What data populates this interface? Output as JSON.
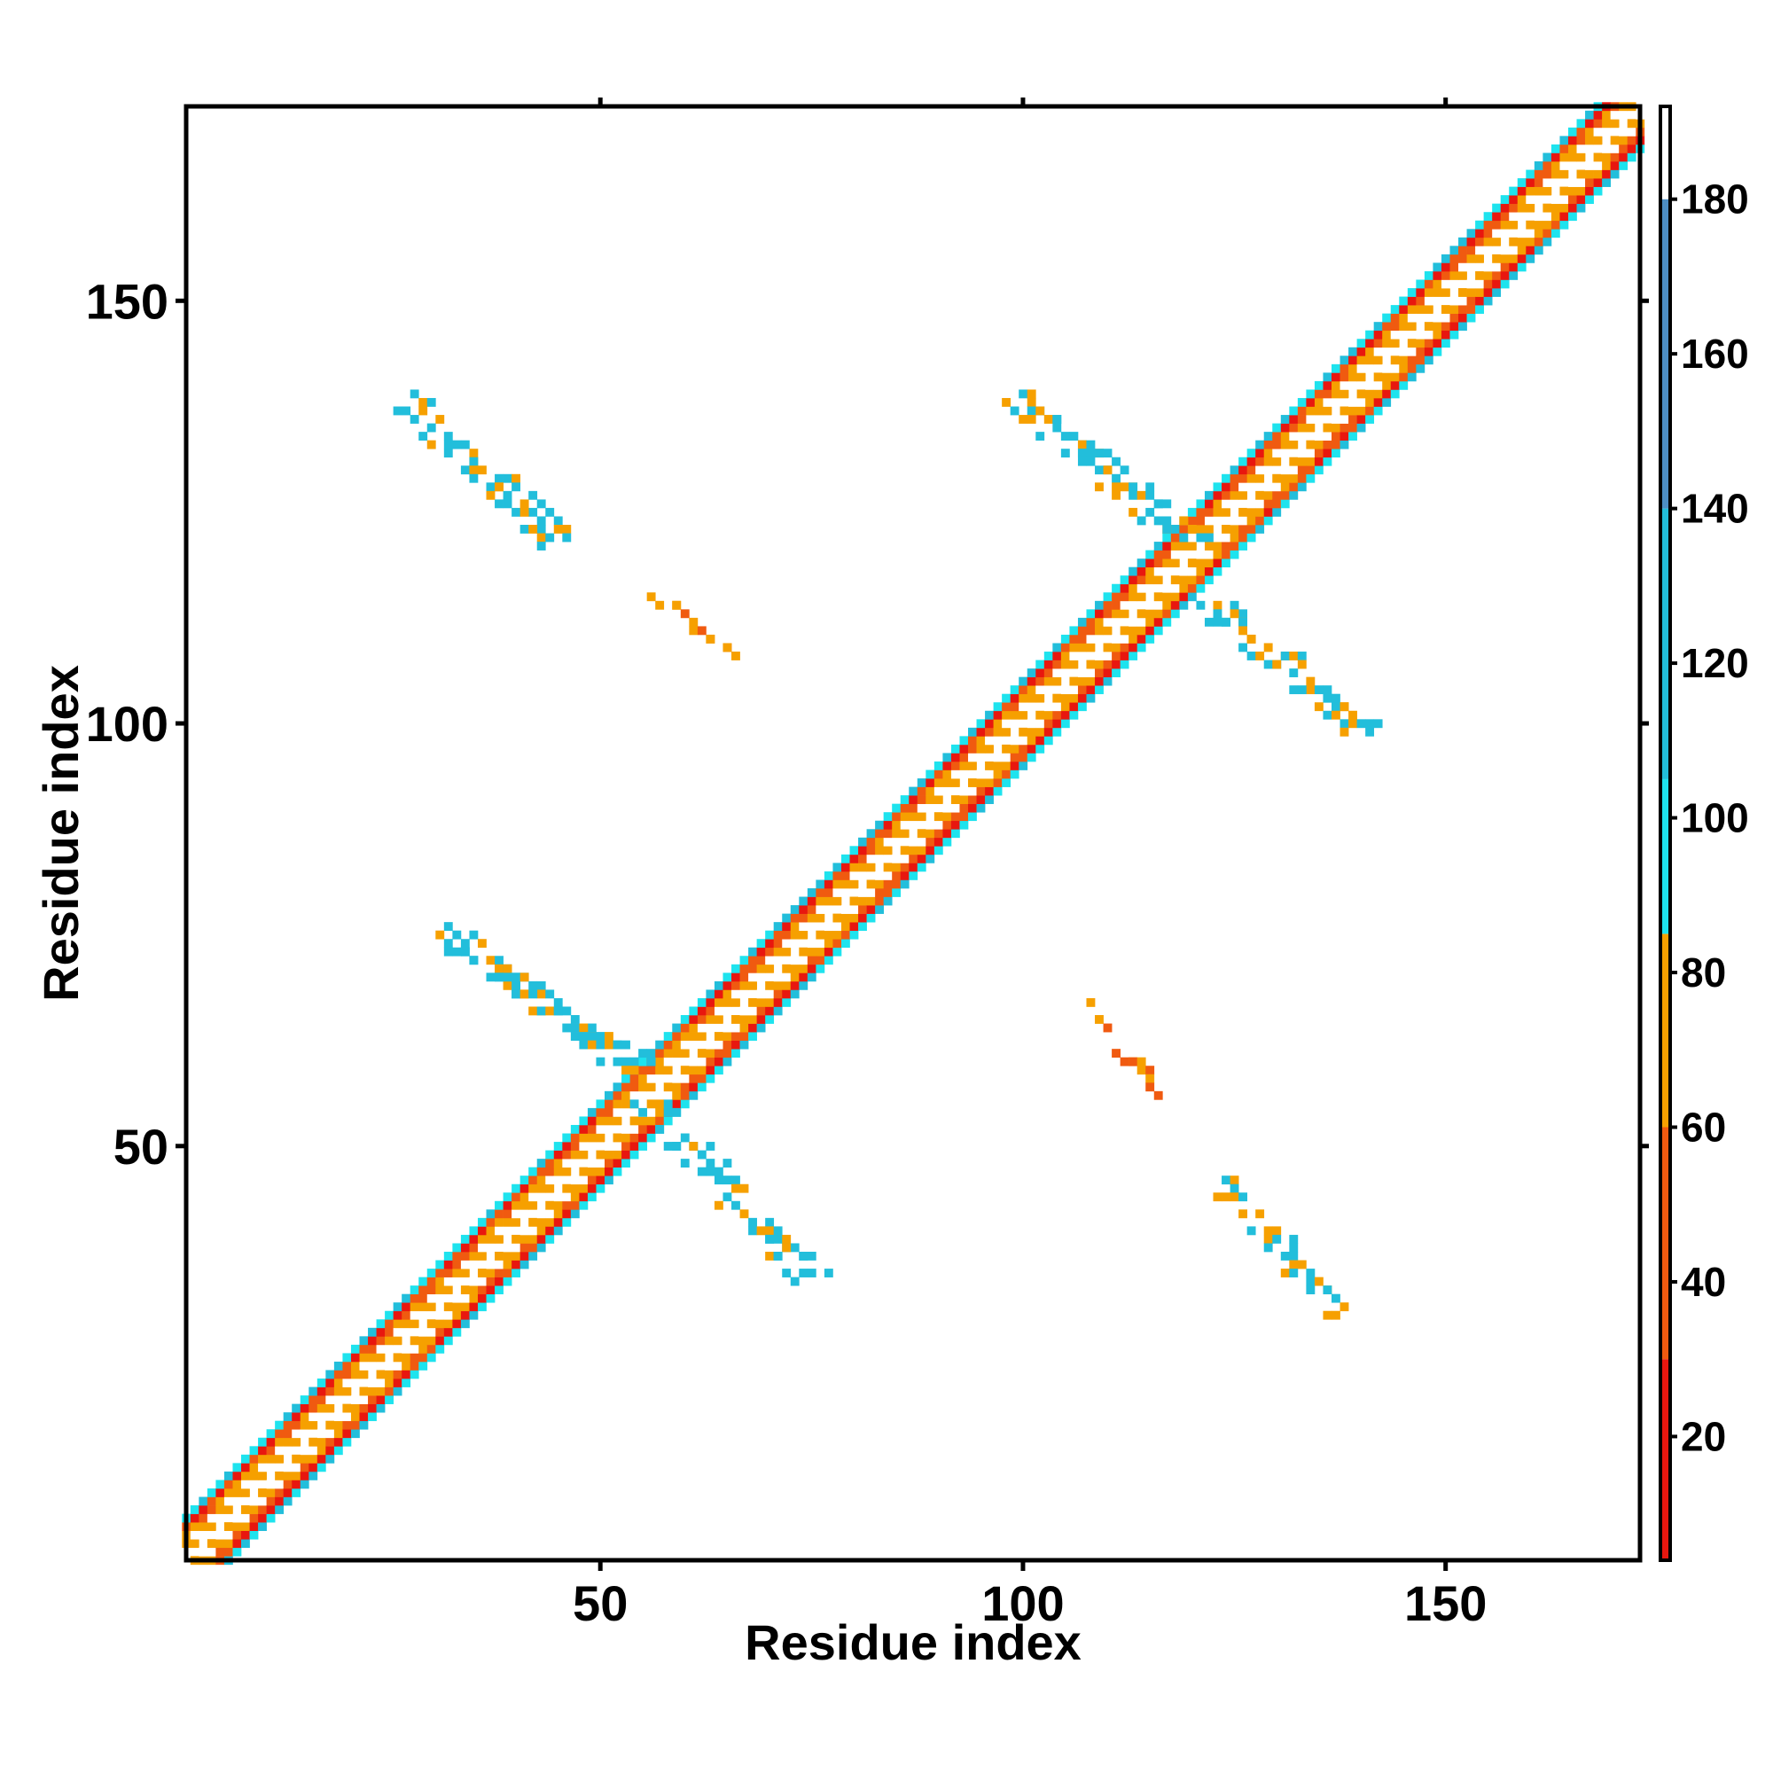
{
  "chart_data": {
    "type": "heatmap",
    "title": "",
    "xlabel": "Residue index",
    "ylabel": "Residue index",
    "xlim": [
      1,
      173
    ],
    "ylim": [
      1,
      173
    ],
    "x_ticks": [
      50,
      100,
      150
    ],
    "y_ticks": [
      50,
      100,
      150
    ],
    "grid": false,
    "colorbar": {
      "range": [
        4,
        192
      ],
      "ticks": [
        20,
        40,
        60,
        80,
        100,
        120,
        140,
        160,
        180
      ],
      "segments": [
        {
          "from": 4,
          "to": 30,
          "color": "#e8170f"
        },
        {
          "from": 30,
          "to": 60,
          "color": "#f05a10"
        },
        {
          "from": 60,
          "to": 85,
          "color": "#f6a000"
        },
        {
          "from": 85,
          "to": 105,
          "color": "#1ee3ee"
        },
        {
          "from": 105,
          "to": 140,
          "color": "#22bedb"
        },
        {
          "from": 140,
          "to": 180,
          "color": "#4d8ec4"
        },
        {
          "from": 180,
          "to": 192,
          "color": "#ffffff"
        }
      ]
    },
    "diagonal_band": {
      "from": 1,
      "to": 173,
      "half_width": 5
    },
    "off_diagonal_contacts": [
      {
        "from": [
          27,
          138
        ],
        "to": [
          45,
          121
        ],
        "strands": 5,
        "value_mix": [
          70,
          110,
          140
        ]
      },
      {
        "from": [
          31,
          75
        ],
        "to": [
          54,
          59
        ],
        "strands": 5,
        "value_mix": [
          70,
          110,
          140
        ]
      },
      {
        "from": [
          56,
          54
        ],
        "to": [
          75,
          34
        ],
        "strands": 5,
        "value_mix": [
          70,
          110,
          140
        ]
      },
      {
        "from": [
          99,
          138
        ],
        "to": [
          120,
          121
        ],
        "strands": 5,
        "value_mix": [
          70,
          110,
          140
        ]
      },
      {
        "from": [
          122,
          114
        ],
        "to": [
          140,
          99
        ],
        "strands": 5,
        "value_mix": [
          70,
          110,
          140
        ]
      },
      {
        "from": [
          124,
          45
        ],
        "to": [
          138,
          30
        ],
        "strands": 4,
        "value_mix": [
          70,
          110
        ]
      },
      {
        "from": [
          56,
          116
        ],
        "to": [
          66,
          108
        ],
        "strands": 2,
        "value_mix": [
          70,
          60
        ]
      },
      {
        "from": [
          108,
          67
        ],
        "to": [
          116,
          56
        ],
        "strands": 2,
        "value_mix": [
          70,
          60
        ]
      }
    ]
  }
}
